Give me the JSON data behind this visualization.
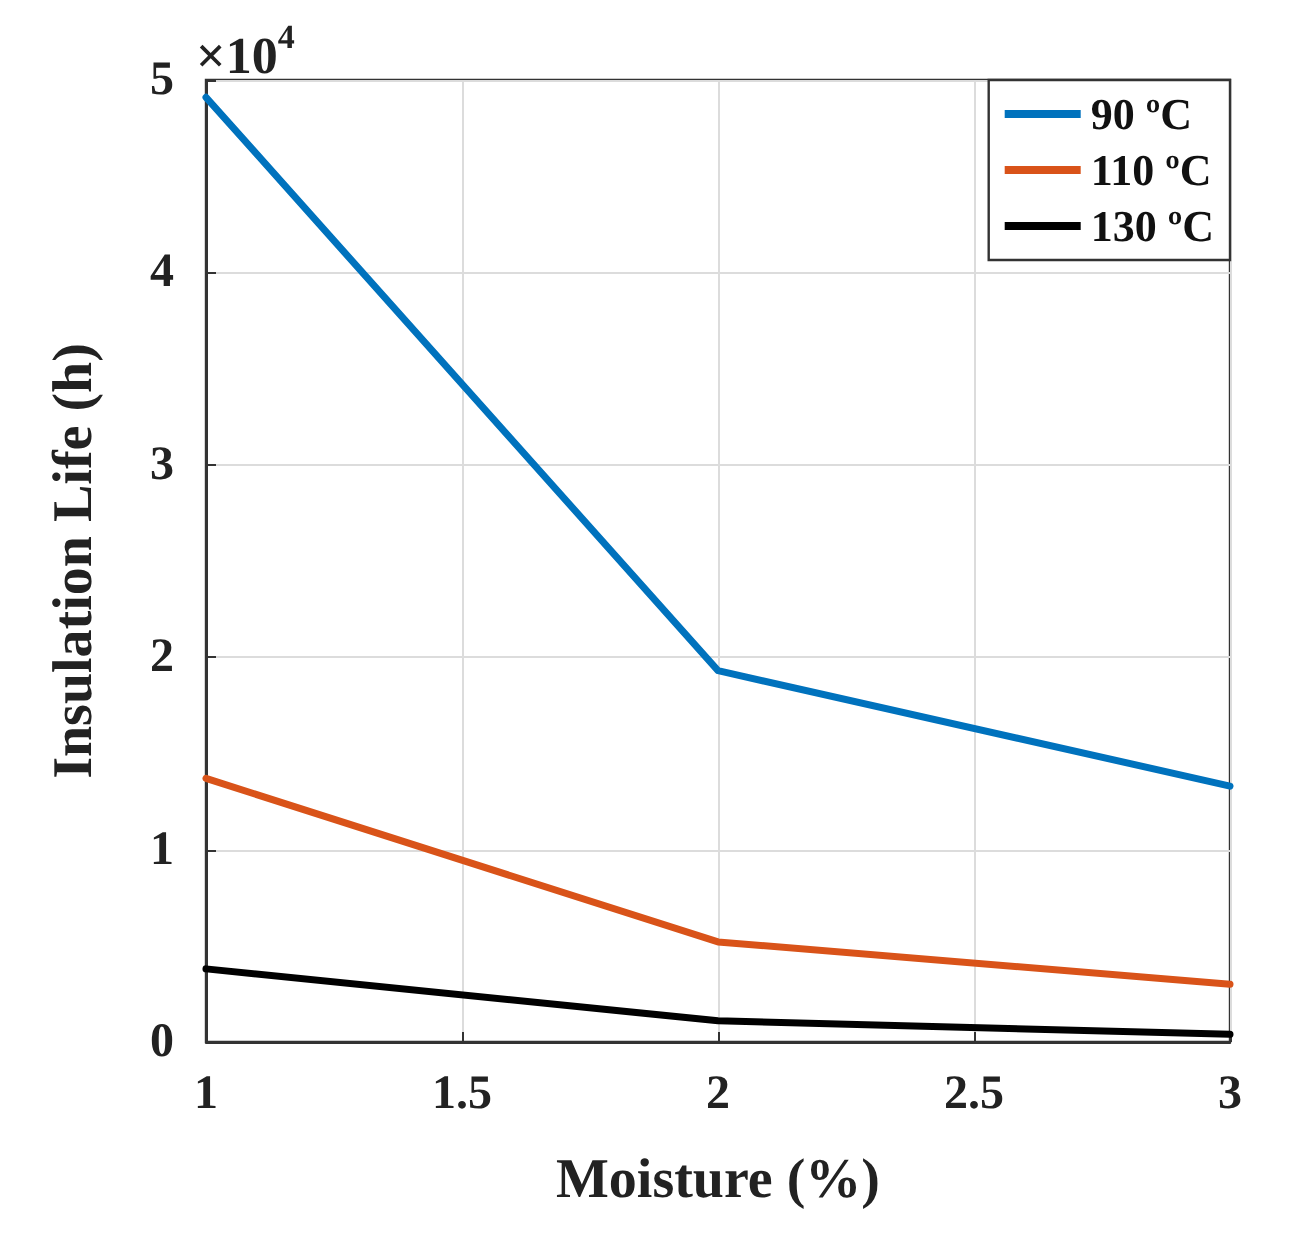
{
  "chart_data": {
    "type": "line",
    "xlabel": "Moisture (%)",
    "ylabel": "Insulation Life (h)",
    "annotations": [
      "×10$^{4}$"
    ],
    "x": [
      1,
      2,
      3
    ],
    "series": [
      {
        "name": "90 ºC",
        "color": "#0072bd",
        "values": [
          4.91,
          1.93,
          1.33
        ]
      },
      {
        "name": "110 ºC",
        "color": "#d95319",
        "values": [
          1.37,
          0.52,
          0.3
        ]
      },
      {
        "name": "130 ºC",
        "color": "#000000",
        "values": [
          0.38,
          0.11,
          0.04
        ]
      }
    ],
    "xlim": [
      1,
      3
    ],
    "xticks": [
      1,
      1.5,
      2,
      2.5,
      3
    ],
    "ylim": [
      0,
      5
    ],
    "yticks": [
      0,
      1,
      2,
      3,
      4,
      5
    ],
    "grid": true,
    "legend": "top right",
    "marker": "none",
    "line_style": "solid"
  }
}
